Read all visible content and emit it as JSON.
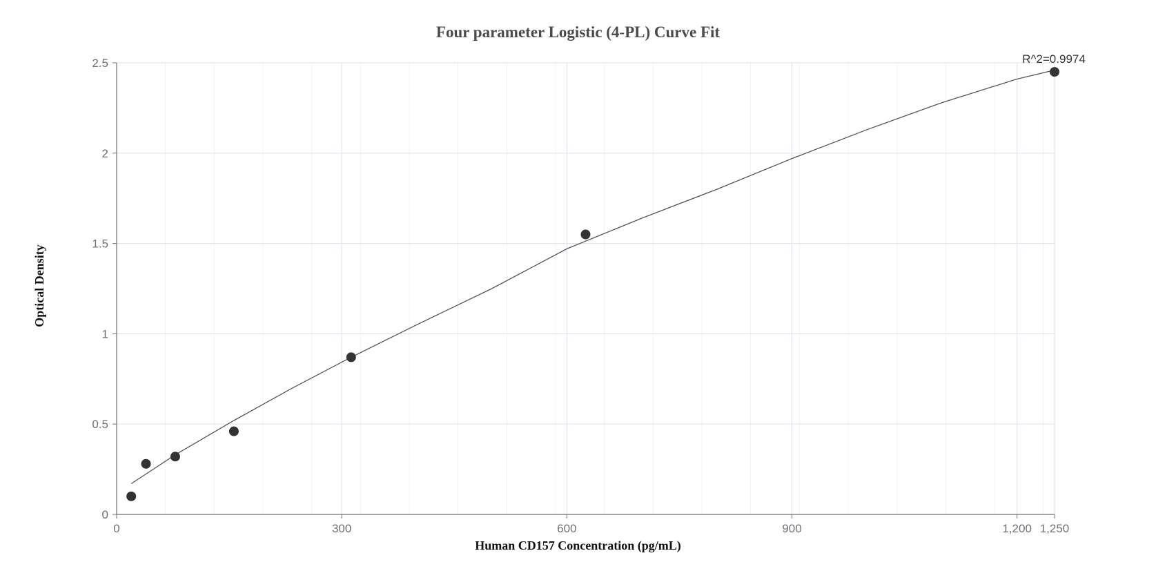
{
  "chart_data": {
    "type": "scatter",
    "title": "Four parameter Logistic (4-PL) Curve Fit",
    "xlabel": "Human CD157 Concentration (pg/mL)",
    "ylabel": "Optical Density",
    "xlim": [
      0,
      1250
    ],
    "ylim": [
      0,
      2.5
    ],
    "x_ticks": [
      0,
      300,
      600,
      900,
      1200,
      1250
    ],
    "x_tick_labels": [
      "0",
      "300",
      "600",
      "900",
      "1,200",
      "1,250"
    ],
    "y_ticks": [
      0,
      0.5,
      1,
      1.5,
      2,
      2.5
    ],
    "y_tick_labels": [
      "0",
      "0.5",
      "1",
      "1.5",
      "2",
      "2.5"
    ],
    "grid": true,
    "series": [
      {
        "x": [
          19.5,
          39.1,
          78.1,
          156.3,
          312.5,
          625,
          1250
        ],
        "y": [
          0.1,
          0.28,
          0.32,
          0.46,
          0.87,
          1.55,
          2.45
        ]
      }
    ],
    "fit_curve": {
      "x": [
        19.5,
        78.1,
        156.3,
        234.4,
        312.5,
        400,
        500,
        600,
        700,
        800,
        900,
        1000,
        1100,
        1200,
        1250
      ],
      "y": [
        0.17,
        0.33,
        0.52,
        0.7,
        0.87,
        1.05,
        1.25,
        1.47,
        1.64,
        1.8,
        1.97,
        2.13,
        2.28,
        2.41,
        2.46
      ]
    },
    "annotation": "R^2=0.9974",
    "colors": {
      "point": "#333333",
      "curve": "#555555",
      "grid": "#e0e6f1",
      "axis": "#6e7079",
      "title": "#4a4a4a"
    }
  }
}
